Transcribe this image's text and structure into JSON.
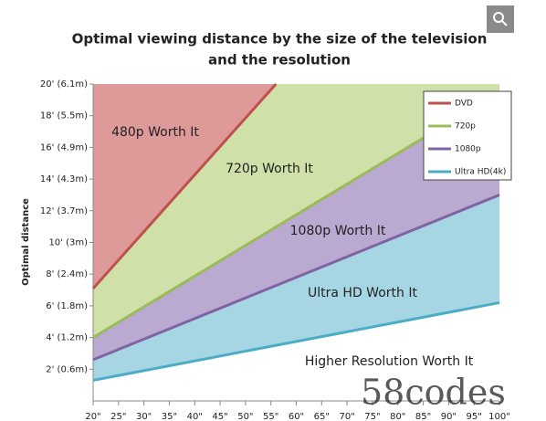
{
  "chart_data": {
    "type": "line",
    "title": [
      "Optimal viewing distance by the size of the television",
      "and the resolution"
    ],
    "y_label": "Optimal distance",
    "xlim": [
      20,
      100
    ],
    "ylim": [
      0,
      20
    ],
    "xticks": [
      {
        "value": 20,
        "label": "20\""
      },
      {
        "value": 25,
        "label": "25\""
      },
      {
        "value": 30,
        "label": "30\""
      },
      {
        "value": 35,
        "label": "35\""
      },
      {
        "value": 40,
        "label": "40\""
      },
      {
        "value": 45,
        "label": "45\""
      },
      {
        "value": 50,
        "label": "50\""
      },
      {
        "value": 55,
        "label": "55\""
      },
      {
        "value": 60,
        "label": "60\""
      },
      {
        "value": 65,
        "label": "65\""
      },
      {
        "value": 70,
        "label": "70\""
      },
      {
        "value": 75,
        "label": "75\""
      },
      {
        "value": 80,
        "label": "80\""
      },
      {
        "value": 85,
        "label": "85\""
      },
      {
        "value": 90,
        "label": "90\""
      },
      {
        "value": 95,
        "label": "95\""
      },
      {
        "value": 100,
        "label": "100\""
      }
    ],
    "yticks": [
      {
        "value": 2,
        "label": "2' (0.6m)"
      },
      {
        "value": 4,
        "label": "4' (1.2m)"
      },
      {
        "value": 6,
        "label": "6' (1.8m)"
      },
      {
        "value": 8,
        "label": "8' (2.4m)"
      },
      {
        "value": 10,
        "label": "10' (3m)"
      },
      {
        "value": 12,
        "label": "12' (3.7m)"
      },
      {
        "value": 14,
        "label": "14' (4.3m)"
      },
      {
        "value": 16,
        "label": "16' (4.9m)"
      },
      {
        "value": 18,
        "label": "18' (5.5m)"
      },
      {
        "value": 20,
        "label": "20' (6.1m)"
      }
    ],
    "series": [
      {
        "name": "DVD",
        "color": "#c0504d",
        "fill": "#dd9a98",
        "x": [
          20,
          56
        ],
        "values": [
          7.1,
          20
        ]
      },
      {
        "name": "720p",
        "color": "#9bbb59",
        "fill": "#cfe0a9",
        "x": [
          20,
          100
        ],
        "values": [
          4.0,
          19.5
        ]
      },
      {
        "name": "1080p",
        "color": "#8064a2",
        "fill": "#baa9d1",
        "x": [
          20,
          100
        ],
        "values": [
          2.6,
          13.0
        ]
      },
      {
        "name": "Ultra HD(4k)",
        "color": "#4bacc6",
        "fill": "#a6d6e4",
        "x": [
          20,
          100
        ],
        "values": [
          1.3,
          6.2
        ]
      }
    ],
    "annotations": [
      "480p Worth It",
      "720p Worth It",
      "1080p Worth It",
      "Ultra HD Worth It",
      "Higher Resolution Worth It"
    ],
    "legend": "upper right",
    "watermark": "58codes"
  }
}
